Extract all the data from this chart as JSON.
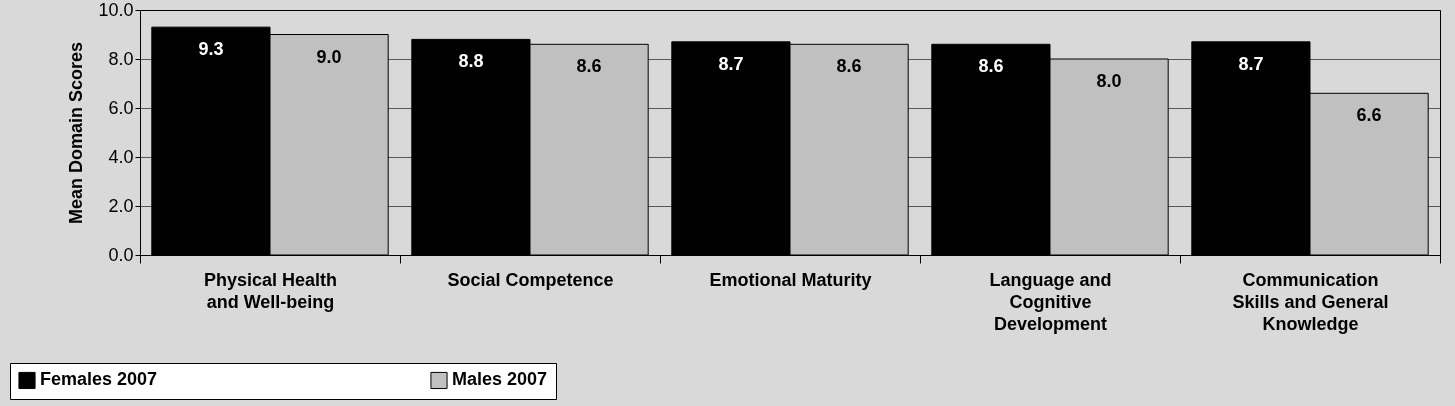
{
  "chart_data": {
    "type": "bar",
    "ylabel": "Mean Domain Scores",
    "categories": [
      "Physical Health and Well-being",
      "Social Competence",
      "Emotional Maturity",
      "Language and Cognitive Development",
      "Communication Skills and General Knowledge"
    ],
    "series": [
      {
        "name": "Females 2007",
        "color": "#000000",
        "values": [
          9.3,
          8.8,
          8.7,
          8.6,
          8.7
        ],
        "value_labels": [
          "9.3",
          "8.8",
          "8.7",
          "8.6",
          "8.7"
        ]
      },
      {
        "name": "Males 2007",
        "color": "#c0c0c0",
        "values": [
          9.0,
          8.6,
          8.6,
          8.0,
          6.6
        ],
        "value_labels": [
          "9.0",
          "8.6",
          "8.6",
          "8.0",
          "6.6"
        ]
      }
    ],
    "ylim": [
      0,
      10
    ],
    "yticks": [
      {
        "value": 0,
        "label": "0.0"
      },
      {
        "value": 2,
        "label": "2.0"
      },
      {
        "value": 4,
        "label": "4.0"
      },
      {
        "value": 6,
        "label": "6.0"
      },
      {
        "value": 8,
        "label": "8.0"
      },
      {
        "value": 10,
        "label": "10.0"
      }
    ],
    "grid": "y",
    "legend": "bottom left"
  }
}
